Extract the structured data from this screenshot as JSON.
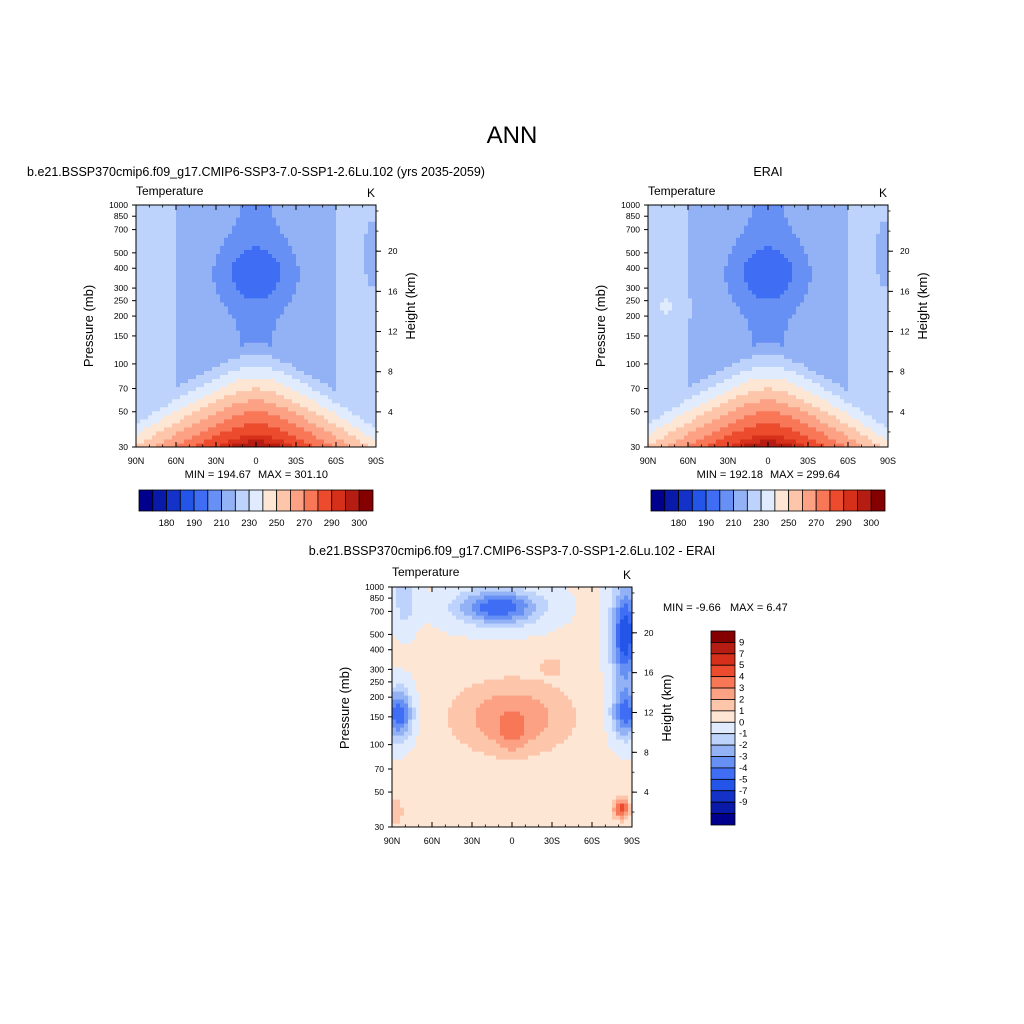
{
  "figure": {
    "title": "ANN",
    "palette_temp": [
      "#00008c",
      "#0a1aa8",
      "#1432c8",
      "#2255e8",
      "#3f6ef5",
      "#6690f4",
      "#93b2f5",
      "#bdd3fb",
      "#e0ecfe",
      "#fee6d5",
      "#fdc5aa",
      "#fca184",
      "#f77757",
      "#ec4c2d",
      "#d6301a",
      "#b51d12",
      "#850000"
    ],
    "palette_diff": [
      "#00008c",
      "#0a1aa8",
      "#1432c8",
      "#2255e8",
      "#3f6ef5",
      "#6690f4",
      "#93b2f5",
      "#bdd3fb",
      "#e0ecfe",
      "#fee6d5",
      "#fdc5aa",
      "#fca184",
      "#f77757",
      "#ec4c2d",
      "#d6301a",
      "#b51d12",
      "#850000"
    ]
  },
  "chart_data": [
    {
      "id": "model",
      "type": "heatmap",
      "title": "b.e21.BSSP370cmip6.f09_g17.CMIP6-SSP3-7.0-SSP1-2.6Lu.102 (yrs 2035-2059)",
      "left_string": "Temperature",
      "right_string": "K",
      "ylabel": "Pressure (mb)",
      "ylabel_right": "Height (km)",
      "x_ticks": [
        "90N",
        "60N",
        "30N",
        "0",
        "30S",
        "60S",
        "90S"
      ],
      "y_ticks": [
        "30",
        "50",
        "70",
        "100",
        "150",
        "200",
        "250",
        "300",
        "400",
        "500",
        "700",
        "850",
        "1000"
      ],
      "y_ticks_right": [
        "4",
        "8",
        "12",
        "16",
        "20"
      ],
      "xlim": [
        90,
        -90
      ],
      "ylim_pressure": [
        1000,
        30
      ],
      "y_scale": "log",
      "min_label": "MIN = 194.67",
      "max_label": "MAX = 301.10",
      "colorbar": {
        "orientation": "horizontal",
        "levels": [
          175,
          180,
          185,
          190,
          200,
          210,
          220,
          230,
          240,
          250,
          260,
          270,
          280,
          290,
          295,
          300
        ],
        "tick_labels": [
          "180",
          "190",
          "210",
          "230",
          "250",
          "270",
          "290",
          "300"
        ]
      },
      "field": {
        "kind": "temperature",
        "mid_bump": 0,
        "polar_warm": 0
      }
    },
    {
      "id": "obs",
      "type": "heatmap",
      "title": "ERAI",
      "left_string": "Temperature",
      "right_string": "K",
      "ylabel": "Pressure (mb)",
      "ylabel_right": "Height (km)",
      "x_ticks": [
        "90N",
        "60N",
        "30N",
        "0",
        "30S",
        "60S",
        "90S"
      ],
      "y_ticks": [
        "30",
        "50",
        "70",
        "100",
        "150",
        "200",
        "250",
        "300",
        "400",
        "500",
        "700",
        "850",
        "1000"
      ],
      "y_ticks_right": [
        "4",
        "8",
        "12",
        "16",
        "20"
      ],
      "xlim": [
        90,
        -90
      ],
      "ylim_pressure": [
        1000,
        30
      ],
      "y_scale": "log",
      "min_label": "MIN = 192.18",
      "max_label": "MAX = 299.64",
      "colorbar": {
        "orientation": "horizontal",
        "levels": [
          175,
          180,
          185,
          190,
          200,
          210,
          220,
          230,
          240,
          250,
          260,
          270,
          280,
          290,
          295,
          300
        ],
        "tick_labels": [
          "180",
          "190",
          "210",
          "230",
          "250",
          "270",
          "290",
          "300"
        ]
      },
      "field": {
        "kind": "temperature",
        "mid_bump": 1,
        "polar_warm": 1
      }
    },
    {
      "id": "diff",
      "type": "heatmap",
      "title": "b.e21.BSSP370cmip6.f09_g17.CMIP6-SSP3-7.0-SSP1-2.6Lu.102 - ERAI",
      "left_string": "Temperature",
      "right_string": "K",
      "ylabel": "Pressure (mb)",
      "ylabel_right": "Height (km)",
      "x_ticks": [
        "90N",
        "60N",
        "30N",
        "0",
        "30S",
        "60S",
        "90S"
      ],
      "y_ticks": [
        "30",
        "50",
        "70",
        "100",
        "150",
        "200",
        "250",
        "300",
        "400",
        "500",
        "700",
        "850",
        "1000"
      ],
      "y_ticks_right": [
        "4",
        "8",
        "12",
        "16",
        "20"
      ],
      "xlim": [
        90,
        -90
      ],
      "ylim_pressure": [
        1000,
        30
      ],
      "y_scale": "log",
      "min_label": "MIN =  -9.66",
      "max_label": "MAX =   6.47",
      "colorbar": {
        "orientation": "vertical",
        "levels": [
          -10,
          -8,
          -6,
          -4.5,
          -3.5,
          -2.5,
          -1.5,
          -0.5,
          0.5,
          1.5,
          2.5,
          3.5,
          4.5,
          6,
          8,
          10
        ],
        "tick_labels": [
          "9",
          "7",
          "5",
          "4",
          "3",
          "2",
          "1",
          "0",
          "-1",
          "-2",
          "-3",
          "-4",
          "-5",
          "-7",
          "-9"
        ]
      },
      "field": {
        "kind": "difference"
      }
    }
  ]
}
